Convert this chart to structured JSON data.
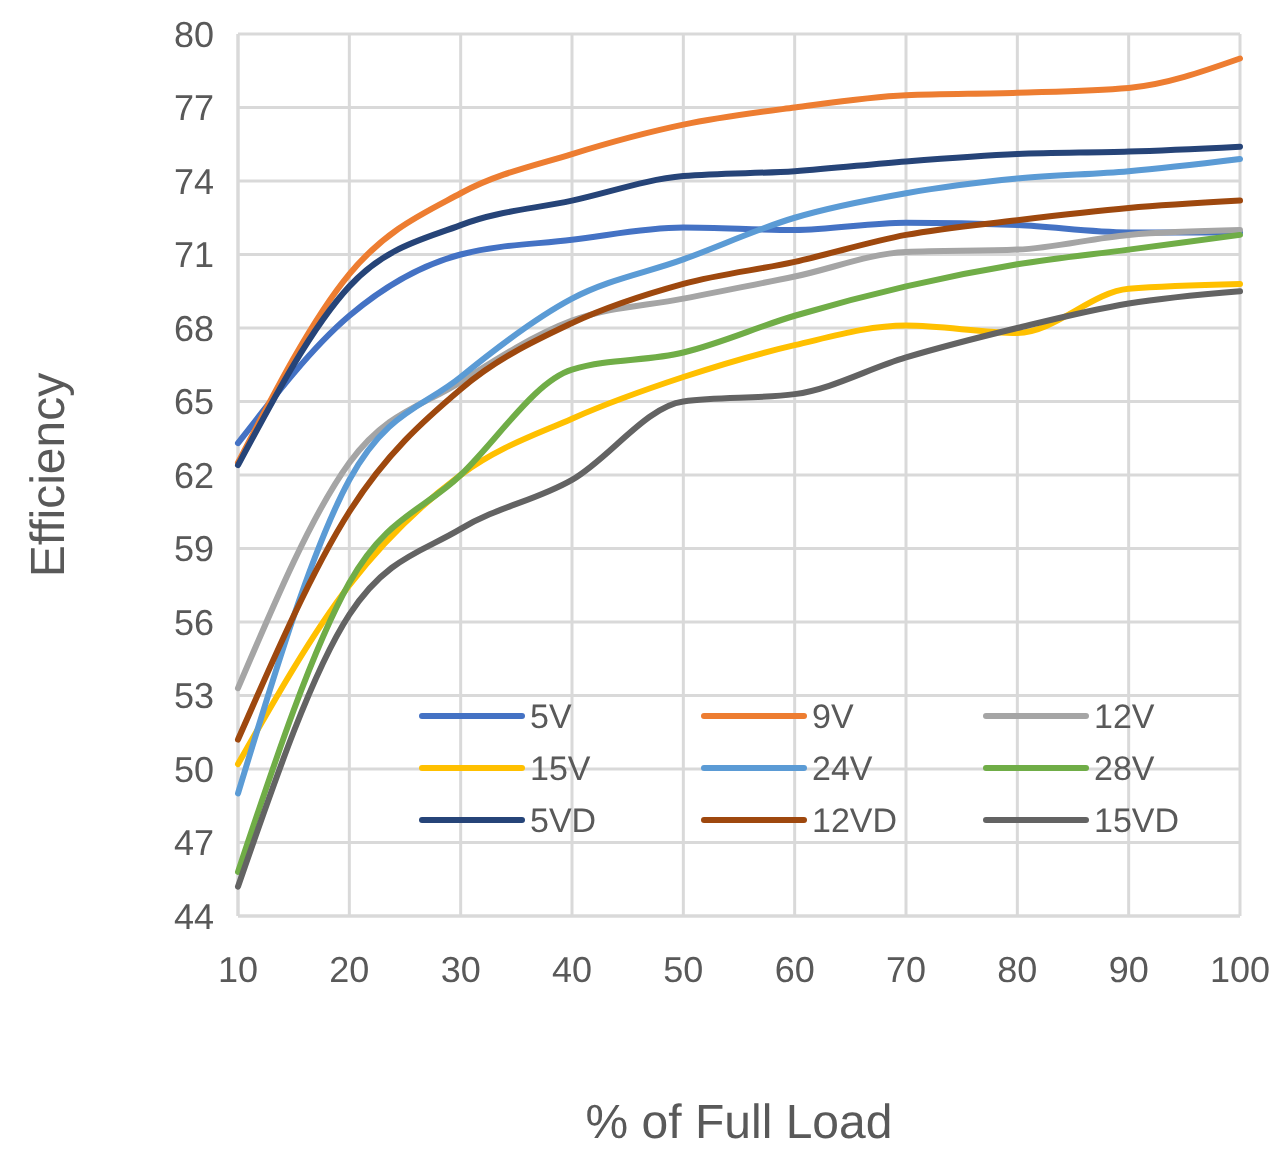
{
  "chart_data": {
    "type": "line",
    "xlabel": "% of Full Load",
    "ylabel": "Efficiency",
    "x": [
      10,
      20,
      30,
      40,
      50,
      60,
      70,
      80,
      90,
      100
    ],
    "xlim": [
      10,
      100
    ],
    "xticks": [
      10,
      20,
      30,
      40,
      50,
      60,
      70,
      80,
      90,
      100
    ],
    "ylim": [
      44,
      80
    ],
    "yticks": [
      44,
      47,
      50,
      53,
      56,
      59,
      62,
      65,
      68,
      71,
      74,
      77,
      80
    ],
    "grid": true,
    "legend": "bottom",
    "marker": "none",
    "line_style": "solid",
    "series": [
      {
        "name": "5V",
        "color": "#4472c4",
        "values": [
          63.3,
          68.5,
          71.0,
          71.6,
          72.1,
          72.0,
          72.3,
          72.2,
          71.9,
          71.9
        ]
      },
      {
        "name": "9V",
        "color": "#ed7d31",
        "values": [
          62.5,
          70.2,
          73.5,
          75.1,
          76.3,
          77.0,
          77.5,
          77.6,
          77.8,
          79.0
        ]
      },
      {
        "name": "12V",
        "color": "#a5a5a5",
        "values": [
          53.3,
          62.5,
          65.8,
          68.3,
          69.2,
          70.1,
          71.1,
          71.2,
          71.8,
          72.0
        ]
      },
      {
        "name": "15V",
        "color": "#ffc000",
        "values": [
          50.2,
          57.5,
          62.0,
          64.3,
          66.0,
          67.3,
          68.1,
          67.8,
          69.6,
          69.8
        ]
      },
      {
        "name": "24V",
        "color": "#5b9bd5",
        "values": [
          49.0,
          61.8,
          66.0,
          69.2,
          70.8,
          72.5,
          73.5,
          74.1,
          74.4,
          74.9
        ]
      },
      {
        "name": "28V",
        "color": "#70ad47",
        "values": [
          45.8,
          57.6,
          62.0,
          66.3,
          67.0,
          68.5,
          69.7,
          70.6,
          71.2,
          71.8
        ]
      },
      {
        "name": "5VD",
        "color": "#264478",
        "values": [
          62.4,
          69.7,
          72.2,
          73.2,
          74.2,
          74.4,
          74.8,
          75.1,
          75.2,
          75.4
        ]
      },
      {
        "name": "12VD",
        "color": "#9e480e",
        "values": [
          51.2,
          60.5,
          65.5,
          68.2,
          69.8,
          70.7,
          71.8,
          72.4,
          72.9,
          73.2
        ]
      },
      {
        "name": "15VD",
        "color": "#636363",
        "values": [
          45.2,
          56.3,
          59.8,
          61.8,
          65.0,
          65.3,
          66.8,
          68.0,
          69.0,
          69.5
        ]
      }
    ]
  }
}
